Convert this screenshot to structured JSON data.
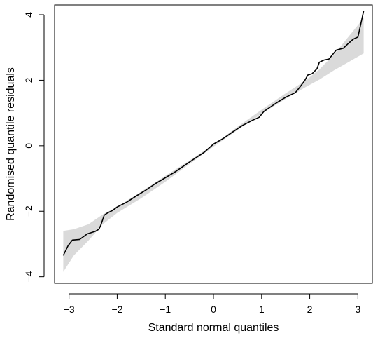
{
  "chart_data": {
    "type": "line",
    "title": "",
    "xlabel": "Standard normal quantiles",
    "ylabel": "Randomised quantile residuals",
    "xlim": [
      -3.3,
      3.3
    ],
    "ylim": [
      -4.2,
      4.3
    ],
    "grid": false,
    "legend": "none",
    "x_ticks": [
      {
        "value": -3,
        "label": "−3"
      },
      {
        "value": -2,
        "label": "−2"
      },
      {
        "value": -1,
        "label": "−1"
      },
      {
        "value": 0,
        "label": "0"
      },
      {
        "value": 1,
        "label": "1"
      },
      {
        "value": 2,
        "label": "2"
      },
      {
        "value": 3,
        "label": "3"
      }
    ],
    "y_ticks": [
      {
        "value": -4,
        "label": "−4"
      },
      {
        "value": -2,
        "label": "−2"
      },
      {
        "value": 0,
        "label": "0"
      },
      {
        "value": 2,
        "label": "2"
      },
      {
        "value": 4,
        "label": "4"
      }
    ],
    "series": [
      {
        "role": "qq-line",
        "color": "#000000",
        "points": [
          [
            -3.12,
            -3.35
          ],
          [
            -3.02,
            -3.05
          ],
          [
            -2.93,
            -2.88
          ],
          [
            -2.78,
            -2.86
          ],
          [
            -2.62,
            -2.69
          ],
          [
            -2.45,
            -2.61
          ],
          [
            -2.38,
            -2.55
          ],
          [
            -2.34,
            -2.43
          ],
          [
            -2.27,
            -2.12
          ],
          [
            -2.2,
            -2.05
          ],
          [
            -2.1,
            -1.98
          ],
          [
            -2.0,
            -1.87
          ],
          [
            -1.8,
            -1.72
          ],
          [
            -1.6,
            -1.53
          ],
          [
            -1.4,
            -1.35
          ],
          [
            -1.2,
            -1.15
          ],
          [
            -1.05,
            -1.02
          ],
          [
            -0.8,
            -0.8
          ],
          [
            -0.6,
            -0.6
          ],
          [
            -0.4,
            -0.4
          ],
          [
            -0.2,
            -0.21
          ],
          [
            0.0,
            0.05
          ],
          [
            0.2,
            0.22
          ],
          [
            0.4,
            0.42
          ],
          [
            0.6,
            0.62
          ],
          [
            0.8,
            0.77
          ],
          [
            0.95,
            0.87
          ],
          [
            1.05,
            1.05
          ],
          [
            1.3,
            1.3
          ],
          [
            1.5,
            1.48
          ],
          [
            1.7,
            1.62
          ],
          [
            1.8,
            1.8
          ],
          [
            1.9,
            2.0
          ],
          [
            1.96,
            2.16
          ],
          [
            2.05,
            2.2
          ],
          [
            2.15,
            2.35
          ],
          [
            2.2,
            2.55
          ],
          [
            2.3,
            2.62
          ],
          [
            2.4,
            2.65
          ],
          [
            2.55,
            2.92
          ],
          [
            2.7,
            2.98
          ],
          [
            2.8,
            3.12
          ],
          [
            2.9,
            3.25
          ],
          [
            3.0,
            3.32
          ],
          [
            3.05,
            3.65
          ],
          [
            3.12,
            4.12
          ]
        ]
      }
    ],
    "envelope": {
      "role": "simulation-envelope",
      "color": "#dadada",
      "x": [
        -3.12,
        -2.9,
        -2.6,
        -2.3,
        -2.0,
        -1.5,
        -1.0,
        -0.5,
        0.0,
        0.5,
        1.0,
        1.5,
        1.9,
        2.2,
        2.5,
        2.8,
        3.12
      ],
      "lower": [
        -3.85,
        -3.35,
        -2.9,
        -2.4,
        -2.05,
        -1.6,
        -1.1,
        -0.56,
        -0.03,
        0.48,
        0.98,
        1.43,
        1.78,
        2.02,
        2.3,
        2.55,
        2.82
      ],
      "upper": [
        -2.6,
        -2.55,
        -2.4,
        -2.1,
        -1.86,
        -1.4,
        -0.92,
        -0.45,
        0.03,
        0.58,
        1.1,
        1.6,
        1.98,
        2.33,
        2.78,
        3.32,
        3.9
      ]
    }
  }
}
